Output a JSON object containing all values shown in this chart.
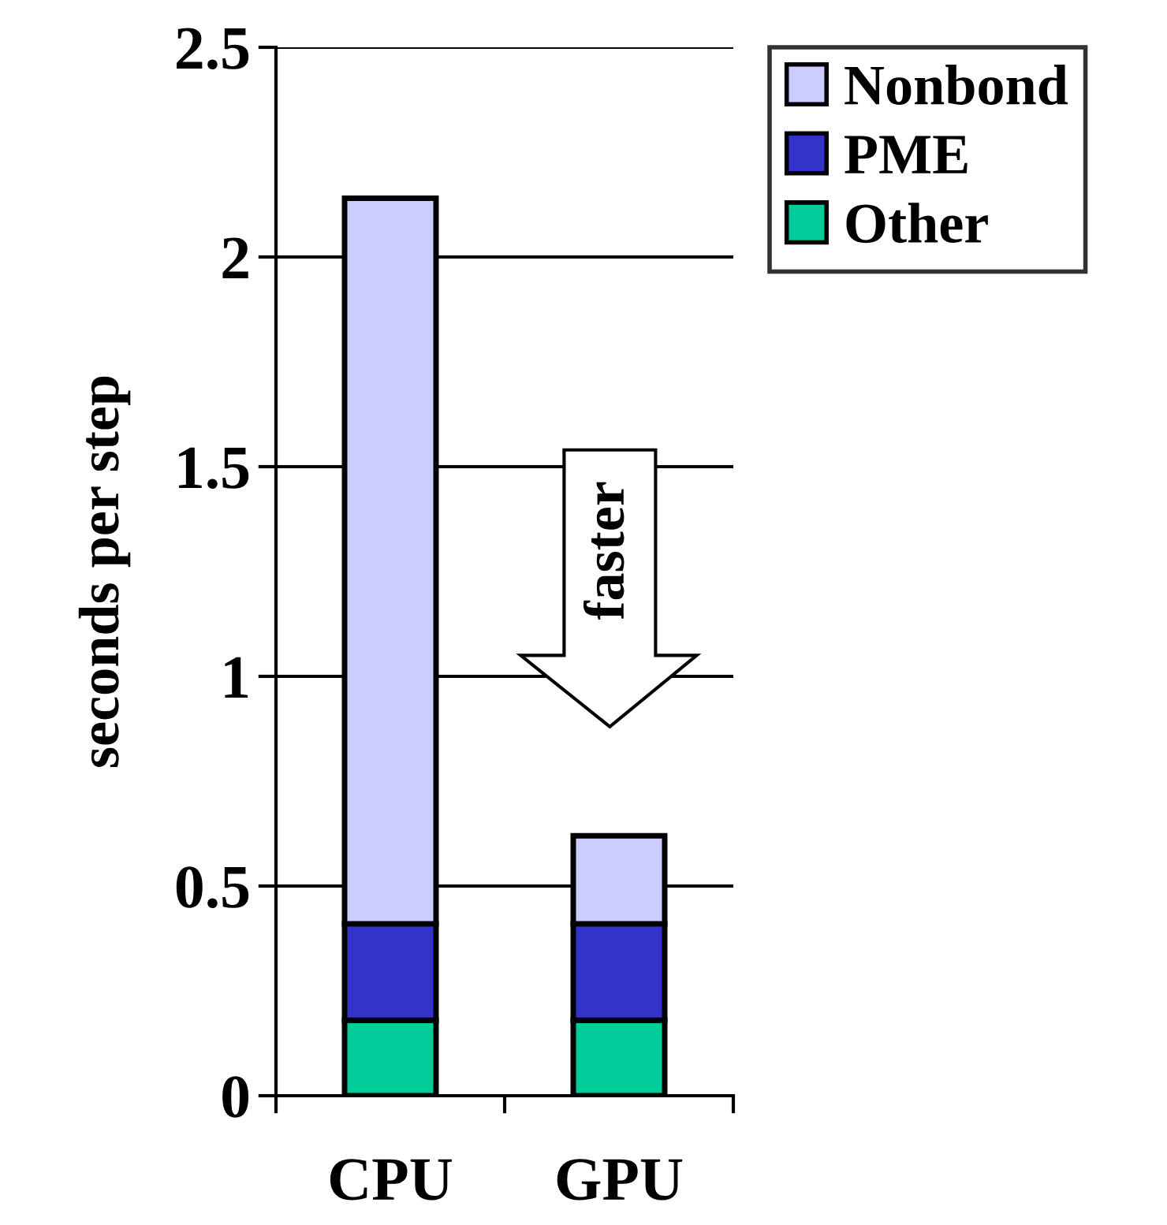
{
  "chart_data": {
    "type": "bar",
    "stacked": true,
    "ylabel": "seconds per step",
    "categories": [
      "CPU",
      "GPU"
    ],
    "series": [
      {
        "name": "Other",
        "color": "#00cc99",
        "values": [
          0.18,
          0.18
        ]
      },
      {
        "name": "PME",
        "color": "#3333cc",
        "values": [
          0.23,
          0.23
        ]
      },
      {
        "name": "Nonbond",
        "color": "#ccccff",
        "values": [
          1.73,
          0.21
        ]
      }
    ],
    "ylim": [
      0,
      2.5
    ],
    "yticks": [
      0,
      0.5,
      1,
      1.5,
      2,
      2.5
    ],
    "grid": "y",
    "legend": "top right",
    "annotations": [
      "faster"
    ]
  }
}
